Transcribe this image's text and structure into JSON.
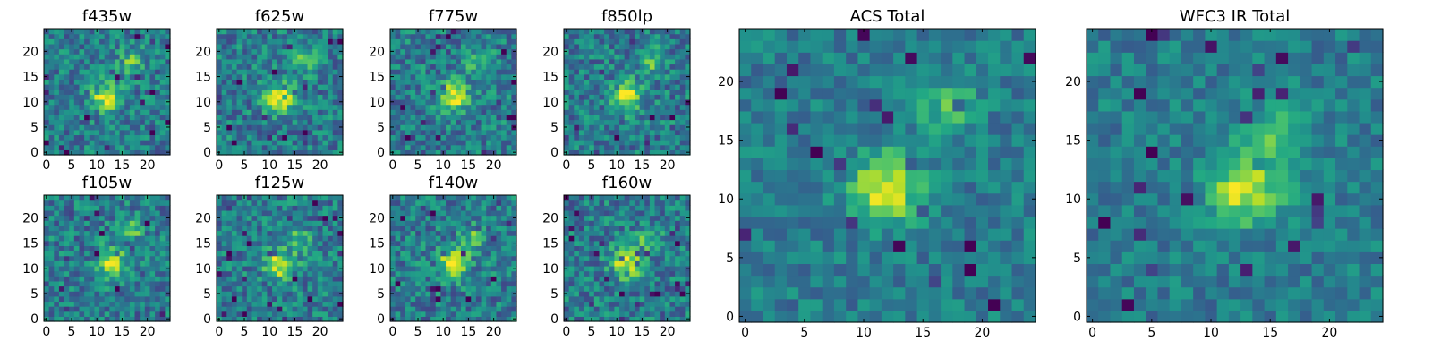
{
  "chart_data": {
    "type": "heatmap",
    "colormap": "viridis",
    "grid_size": 25,
    "panels": [
      {
        "id": "f435w",
        "title": "f435w",
        "xticks": [
          0,
          5,
          10,
          15,
          20
        ],
        "yticks": [
          0,
          5,
          10,
          15,
          20
        ],
        "peak": [
          12,
          11
        ],
        "blob": [
          17,
          18
        ]
      },
      {
        "id": "f625w",
        "title": "f625w",
        "xticks": [
          0,
          5,
          10,
          15,
          20
        ],
        "yticks": [
          0,
          5,
          10,
          15,
          20
        ],
        "peak": [
          12,
          11
        ],
        "blob": [
          17,
          18
        ]
      },
      {
        "id": "f775w",
        "title": "f775w",
        "xticks": [
          0,
          5,
          10,
          15,
          20
        ],
        "yticks": [
          0,
          5,
          10,
          15,
          20
        ],
        "peak": [
          12,
          11
        ],
        "blob": [
          17,
          18
        ]
      },
      {
        "id": "f850lp",
        "title": "f850lp",
        "xticks": [
          0,
          5,
          10,
          15,
          20
        ],
        "yticks": [
          0,
          5,
          10,
          15,
          20
        ],
        "peak": [
          12,
          11
        ],
        "blob": [
          17,
          18
        ]
      },
      {
        "id": "f105w",
        "title": "f105w",
        "xticks": [
          0,
          5,
          10,
          15,
          20
        ],
        "yticks": [
          0,
          5,
          10,
          15,
          20
        ],
        "peak": [
          13,
          11
        ],
        "blob": [
          17,
          18
        ]
      },
      {
        "id": "f125w",
        "title": "f125w",
        "xticks": [
          0,
          5,
          10,
          15,
          20
        ],
        "yticks": [
          0,
          5,
          10,
          15,
          20
        ],
        "peak": [
          12,
          11
        ],
        "blob": [
          16,
          16
        ]
      },
      {
        "id": "f140w",
        "title": "f140w",
        "xticks": [
          0,
          5,
          10,
          15,
          20
        ],
        "yticks": [
          0,
          5,
          10,
          15,
          20
        ],
        "peak": [
          12,
          11
        ],
        "blob": [
          16,
          16
        ]
      },
      {
        "id": "f160w",
        "title": "f160w",
        "xticks": [
          0,
          5,
          10,
          15,
          20
        ],
        "yticks": [
          0,
          5,
          10,
          15,
          20
        ],
        "peak": [
          12,
          11
        ],
        "blob": [
          16,
          16
        ]
      },
      {
        "id": "acs_total",
        "title": "ACS Total",
        "xticks": [
          0,
          5,
          10,
          15,
          20
        ],
        "yticks": [
          0,
          5,
          10,
          15,
          20
        ],
        "peak": [
          12,
          11
        ],
        "blob": [
          17,
          18
        ]
      },
      {
        "id": "wfc3_ir_total",
        "title": "WFC3 IR Total",
        "xticks": [
          0,
          5,
          10,
          15,
          20
        ],
        "yticks": [
          0,
          5,
          10,
          15,
          20
        ],
        "peak": [
          13,
          11
        ],
        "blob": [
          16,
          16
        ]
      }
    ]
  }
}
